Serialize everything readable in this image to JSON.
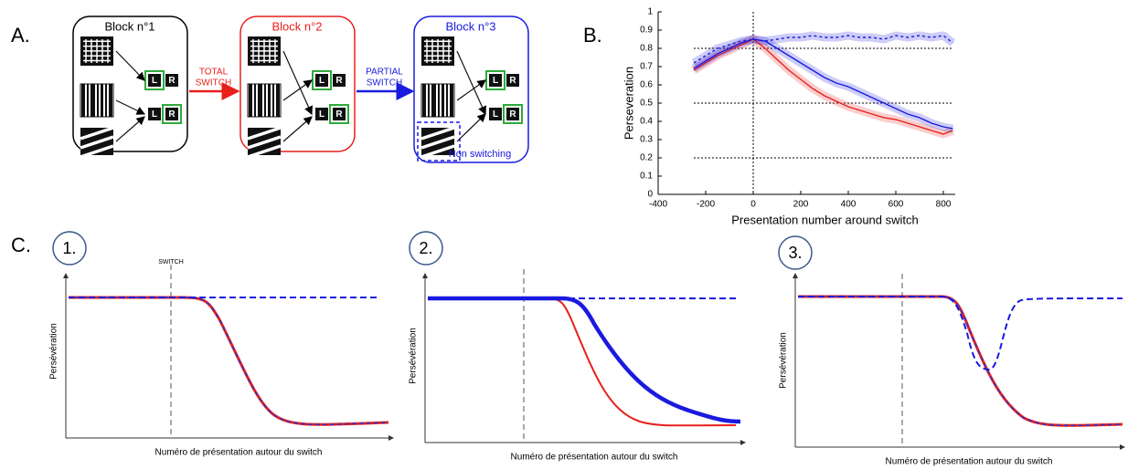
{
  "panel_labels": [
    "A.",
    "B.",
    "C."
  ],
  "panel_a": {
    "blocks": [
      {
        "title": "Block n°1",
        "color": "#000000"
      },
      {
        "title": "Block n°2",
        "color": "#e8201a"
      },
      {
        "title": "Block n°3",
        "color": "#1a1ae0"
      }
    ],
    "transitions": [
      {
        "lines": [
          "TOTAL",
          "SWITCH"
        ],
        "color": "#e8201a"
      },
      {
        "lines": [
          "PARTIAL",
          "SWITCH"
        ],
        "color": "#1a1ae0"
      }
    ],
    "keys": [
      "L",
      "R"
    ],
    "non_switching": "Non switching"
  },
  "chart_data": {
    "type": "line",
    "xlabel": "Presentation number around switch",
    "ylabel": "Perseveration",
    "x": [
      -250,
      -200,
      -150,
      -100,
      -50,
      0,
      50,
      100,
      150,
      200,
      250,
      300,
      350,
      400,
      450,
      500,
      550,
      600,
      650,
      700,
      750,
      800,
      840
    ],
    "series": [
      {
        "color": "#1a1ae0",
        "line_style": "dashed",
        "values": [
          0.72,
          0.76,
          0.8,
          0.82,
          0.84,
          0.85,
          0.84,
          0.85,
          0.86,
          0.86,
          0.87,
          0.86,
          0.86,
          0.87,
          0.86,
          0.86,
          0.85,
          0.87,
          0.86,
          0.87,
          0.86,
          0.87,
          0.83
        ]
      },
      {
        "color": "#e8201a",
        "line_style": "solid",
        "values": [
          0.68,
          0.72,
          0.76,
          0.79,
          0.82,
          0.85,
          0.8,
          0.74,
          0.68,
          0.63,
          0.58,
          0.54,
          0.51,
          0.48,
          0.46,
          0.44,
          0.42,
          0.41,
          0.39,
          0.37,
          0.35,
          0.33,
          0.35
        ]
      },
      {
        "color": "#1a1ae0",
        "line_style": "solid",
        "values": [
          0.69,
          0.73,
          0.77,
          0.8,
          0.83,
          0.85,
          0.84,
          0.8,
          0.76,
          0.72,
          0.68,
          0.64,
          0.61,
          0.59,
          0.56,
          0.53,
          0.5,
          0.47,
          0.44,
          0.42,
          0.39,
          0.37,
          0.36
        ]
      }
    ],
    "hlines": [
      0.8,
      0.5,
      0.2
    ],
    "vlines": [
      0
    ],
    "xlim": [
      -400,
      850
    ],
    "xticks": [
      -400,
      -200,
      0,
      200,
      400,
      600,
      800
    ],
    "ylim": [
      0,
      1
    ],
    "yticks": [
      0,
      0.1,
      0.2,
      0.3,
      0.4,
      0.5,
      0.6,
      0.7,
      0.8,
      0.9,
      1
    ]
  },
  "panel_c": {
    "switch_label": "SWITCH",
    "plots": [
      {
        "number": "1.",
        "ylabel": "Persévération",
        "xlabel": "Numéro de présentation autour du switch"
      },
      {
        "number": "2.",
        "ylabel": "Persévération",
        "xlabel": "Numéro de présentation autour du switch"
      },
      {
        "number": "3.",
        "ylabel": "Persévération",
        "xlabel": "Numéro de présentation autour du switch"
      }
    ]
  }
}
